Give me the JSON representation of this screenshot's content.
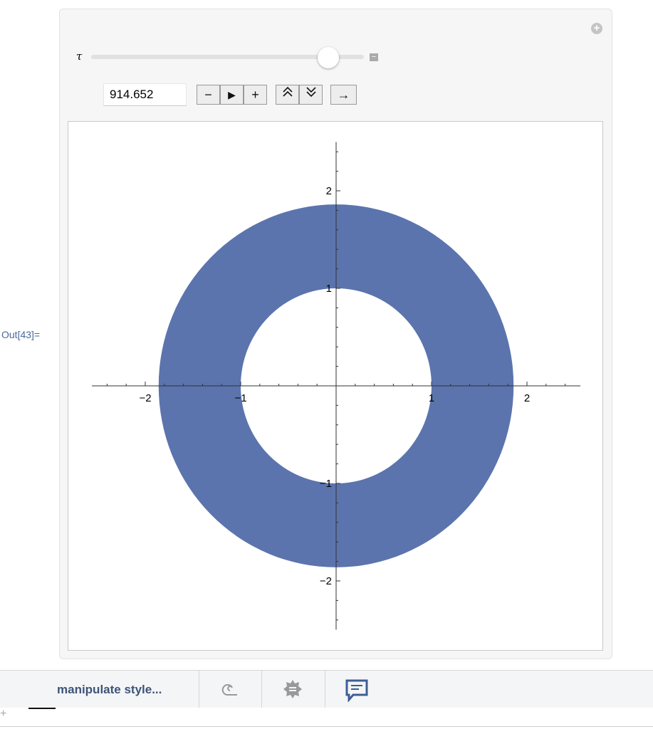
{
  "cell": {
    "out_label": "Out[43]="
  },
  "manipulate": {
    "variable": "τ",
    "slider_fraction": 0.87,
    "value": "914.652",
    "buttons": [
      "−",
      "▶",
      "+",
      "⌃⌃",
      "⌄⌄",
      "→"
    ]
  },
  "plot": {
    "fill_color": "#5b74ad",
    "xlim": [
      -2.56,
      2.56
    ],
    "ylim": [
      -2.5,
      2.5
    ],
    "inner_radius": 1,
    "outer_radius": 1.86,
    "x_ticks": [
      "−2",
      "−1",
      "1",
      "2"
    ],
    "y_ticks": [
      "2",
      "1",
      "−1",
      "−2"
    ]
  },
  "toolbar": {
    "label": "manipulate style...",
    "icons": [
      "spiral-icon",
      "badge-icon",
      "comment-icon"
    ]
  }
}
